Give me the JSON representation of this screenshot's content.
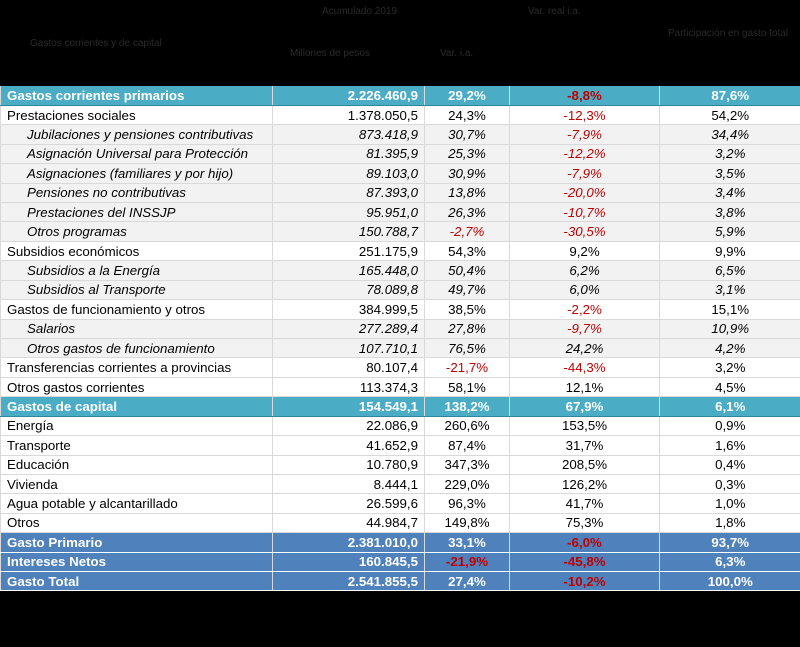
{
  "header": {
    "col1": "Gastos corrientes y de capital",
    "col2_top": "Acumulado 2019",
    "col2a": "Millones de pesos",
    "col2b": "Var. i.a.",
    "col3_top": "Var. real i.a.",
    "col3a": "",
    "col4": "Participación en gasto total"
  },
  "rows": [
    {
      "type": "teal",
      "label": "Gastos corrientes primarios",
      "value": "2.226.460,9",
      "var": "29,2%",
      "real": "-8,8%",
      "share": "87,6%",
      "var_neg": false,
      "real_neg": true
    },
    {
      "type": "main",
      "label": "Prestaciones sociales",
      "value": "1.378.050,5",
      "var": "24,3%",
      "real": "-12,3%",
      "share": "54,2%",
      "var_neg": false,
      "real_neg": true
    },
    {
      "type": "sub",
      "label": "Jubilaciones y pensiones contributivas",
      "value": "873.418,9",
      "var": "30,7%",
      "real": "-7,9%",
      "share": "34,4%",
      "var_neg": false,
      "real_neg": true
    },
    {
      "type": "sub",
      "label": "Asignación Universal para Protección",
      "value": "81.395,9",
      "var": "25,3%",
      "real": "-12,2%",
      "share": "3,2%",
      "var_neg": false,
      "real_neg": true
    },
    {
      "type": "sub",
      "label": "Asignaciones (familiares y por hijo)",
      "value": "89.103,0",
      "var": "30,9%",
      "real": "-7,9%",
      "share": "3,5%",
      "var_neg": false,
      "real_neg": true
    },
    {
      "type": "sub",
      "label": "Pensiones no contributivas",
      "value": "87.393,0",
      "var": "13,8%",
      "real": "-20,0%",
      "share": "3,4%",
      "var_neg": false,
      "real_neg": true
    },
    {
      "type": "sub",
      "label": "Prestaciones del INSSJP",
      "value": "95.951,0",
      "var": "26,3%",
      "real": "-10,7%",
      "share": "3,8%",
      "var_neg": false,
      "real_neg": true
    },
    {
      "type": "sub",
      "label": "Otros programas",
      "value": "150.788,7",
      "var": "-2,7%",
      "real": "-30,5%",
      "share": "5,9%",
      "var_neg": true,
      "real_neg": true
    },
    {
      "type": "main",
      "label": "Subsidios económicos",
      "value": "251.175,9",
      "var": "54,3%",
      "real": "9,2%",
      "share": "9,9%",
      "var_neg": false,
      "real_neg": false
    },
    {
      "type": "sub",
      "label": "Subsidios a la Energía",
      "value": "165.448,0",
      "var": "50,4%",
      "real": "6,2%",
      "share": "6,5%",
      "var_neg": false,
      "real_neg": false
    },
    {
      "type": "sub",
      "label": "Subsidios al Transporte",
      "value": "78.089,8",
      "var": "49,7%",
      "real": "6,0%",
      "share": "3,1%",
      "var_neg": false,
      "real_neg": false
    },
    {
      "type": "main",
      "label": "Gastos de funcionamiento y otros",
      "value": "384.999,5",
      "var": "38,5%",
      "real": "-2,2%",
      "share": "15,1%",
      "var_neg": false,
      "real_neg": true
    },
    {
      "type": "sub",
      "label": "Salarios",
      "value": "277.289,4",
      "var": "27,8%",
      "real": "-9,7%",
      "share": "10,9%",
      "var_neg": false,
      "real_neg": true
    },
    {
      "type": "sub",
      "label": "Otros gastos de funcionamiento",
      "value": "107.710,1",
      "var": "76,5%",
      "real": "24,2%",
      "share": "4,2%",
      "var_neg": false,
      "real_neg": false
    },
    {
      "type": "main",
      "label": "Transferencias corrientes a provincias",
      "value": "80.107,4",
      "var": "-21,7%",
      "real": "-44,3%",
      "share": "3,2%",
      "var_neg": true,
      "real_neg": true
    },
    {
      "type": "main",
      "label": "Otros gastos corrientes",
      "value": "113.374,3",
      "var": "58,1%",
      "real": "12,1%",
      "share": "4,5%",
      "var_neg": false,
      "real_neg": false
    },
    {
      "type": "teal",
      "label": "Gastos de capital",
      "value": "154.549,1",
      "var": "138,2%",
      "real": "67,9%",
      "share": "6,1%",
      "var_neg": false,
      "real_neg": false
    },
    {
      "type": "main",
      "label": "Energía",
      "value": "22.086,9",
      "var": "260,6%",
      "real": "153,5%",
      "share": "0,9%",
      "var_neg": false,
      "real_neg": false
    },
    {
      "type": "main",
      "label": "Transporte",
      "value": "41.652,9",
      "var": "87,4%",
      "real": "31,7%",
      "share": "1,6%",
      "var_neg": false,
      "real_neg": false
    },
    {
      "type": "main",
      "label": "Educación",
      "value": "10.780,9",
      "var": "347,3%",
      "real": "208,5%",
      "share": "0,4%",
      "var_neg": false,
      "real_neg": false
    },
    {
      "type": "main",
      "label": "Vivienda",
      "value": "8.444,1",
      "var": "229,0%",
      "real": "126,2%",
      "share": "0,3%",
      "var_neg": false,
      "real_neg": false
    },
    {
      "type": "main",
      "label": "Agua potable y alcantarillado",
      "value": "26.599,6",
      "var": "96,3%",
      "real": "41,7%",
      "share": "1,0%",
      "var_neg": false,
      "real_neg": false
    },
    {
      "type": "main",
      "label": "Otros",
      "value": "44.984,7",
      "var": "149,8%",
      "real": "75,3%",
      "share": "1,8%",
      "var_neg": false,
      "real_neg": false
    },
    {
      "type": "blue",
      "label": "Gasto Primario",
      "value": "2.381.010,0",
      "var": "33,1%",
      "real": "-6,0%",
      "share": "93,7%",
      "var_neg": false,
      "real_neg": true
    },
    {
      "type": "blue",
      "label": "Intereses Netos",
      "value": "160.845,5",
      "var": "-21,9%",
      "real": "-45,8%",
      "share": "6,3%",
      "var_neg": true,
      "real_neg": true
    },
    {
      "type": "blue",
      "label": "Gasto Total",
      "value": "2.541.855,5",
      "var": "27,4%",
      "real": "-10,2%",
      "share": "100,0%",
      "var_neg": false,
      "real_neg": true
    }
  ],
  "colors": {
    "teal": "#4bacc6",
    "blue": "#4f81bd",
    "negative": "#c00000",
    "bar1": "#f79646",
    "bar2": "#8064a2",
    "bar3": "#c0504d"
  }
}
